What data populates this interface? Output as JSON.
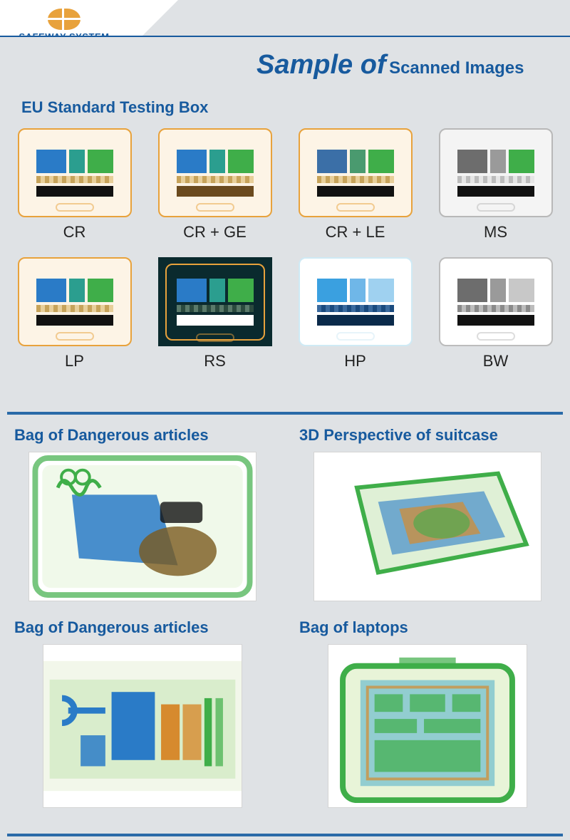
{
  "brand": {
    "name": "SAFEWAY SYSTEM"
  },
  "title": {
    "part1": "Sample of",
    "part2": "Scanned Images"
  },
  "section1": {
    "heading": "EU Standard Testing Box",
    "modes": [
      {
        "code": "CR",
        "label": "CR",
        "case_border": "#e8a23c",
        "case_bg": "#fdf4e6",
        "blocks": {
          "a": "#2a7bc7",
          "b": "#2b9e8f",
          "c": "#3fae49",
          "stripe": "stripe",
          "bar": "#111"
        }
      },
      {
        "code": "CRGE",
        "label": "CR + GE",
        "case_border": "#e8a23c",
        "case_bg": "#fdf4e6",
        "blocks": {
          "a": "#2a7bc7",
          "b": "#2b9e8f",
          "c": "#3fae49",
          "stripe": "stripe",
          "bar": "#6b4a1e"
        }
      },
      {
        "code": "CRLE",
        "label": "CR + LE",
        "case_border": "#e8a23c",
        "case_bg": "#fdf4e6",
        "blocks": {
          "a": "#3b6fa7",
          "b": "#4a9a6f",
          "c": "#3fae49",
          "stripe": "stripe",
          "bar": "#111"
        }
      },
      {
        "code": "MS",
        "label": "MS",
        "case_border": "#b8b8b8",
        "case_bg": "#f4f4f4",
        "blocks": {
          "a": "#6d6d6d",
          "b": "#9a9a9a",
          "c": "#3fae49",
          "stripe": "lightstripe",
          "bar": "#111"
        }
      },
      {
        "code": "LP",
        "label": "LP",
        "case_border": "#e8a23c",
        "case_bg": "#fdf4e6",
        "blocks": {
          "a": "#2a7bc7",
          "b": "#2b9e8f",
          "c": "#3fae49",
          "stripe": "stripe",
          "bar": "#111"
        }
      },
      {
        "code": "RS",
        "label": "RS",
        "case_border": "#e8a23c",
        "case_bg": "#0a2a2e",
        "blocks": {
          "a": "#2a7bc7",
          "b": "#2b9e8f",
          "c": "#3fae49",
          "stripe": "darkstripe",
          "bar": "#ffffff"
        },
        "inverted": true
      },
      {
        "code": "HP",
        "label": "HP",
        "case_border": "#cfeaf5",
        "case_bg": "#ffffff",
        "blocks": {
          "a": "#3aa0e0",
          "b": "#6fb7e8",
          "c": "#9fd1f0",
          "stripe": "bluestripe",
          "bar": "#0a2a4a"
        }
      },
      {
        "code": "BW",
        "label": "BW",
        "case_border": "#bcbcbc",
        "case_bg": "#ffffff",
        "blocks": {
          "a": "#6d6d6d",
          "b": "#9a9a9a",
          "c": "#c8c8c8",
          "stripe": "greystripe",
          "bar": "#111"
        }
      }
    ]
  },
  "section2": {
    "items": [
      {
        "title": "Bag of Dangerous articles",
        "kind": "dangerous1"
      },
      {
        "title": "3D Perspective of suitcase",
        "kind": "suitcase3d"
      },
      {
        "title": "Bag of Dangerous articles",
        "kind": "dangerous2"
      },
      {
        "title": "Bag of laptops",
        "kind": "laptops"
      }
    ]
  },
  "palette": {
    "brand_blue": "#175a9e",
    "page_bg": "#dfe2e5",
    "divider": "#2a6aa8",
    "xray_green": "#3fae49",
    "xray_blue": "#2a7bc7",
    "xray_orange": "#d68a2e",
    "xray_brown": "#7a5a1e"
  }
}
